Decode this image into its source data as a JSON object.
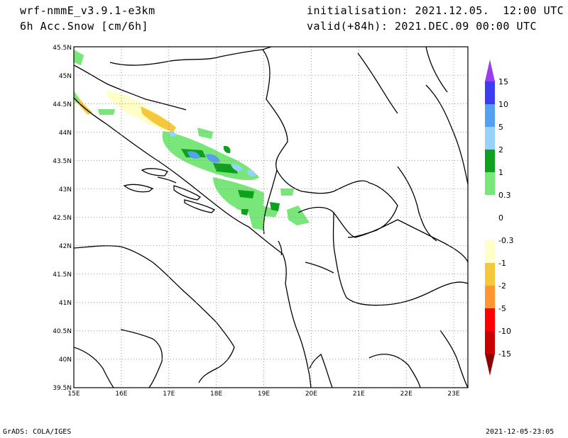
{
  "header": {
    "model": "wrf-nmmE_v3.9.1-e3km",
    "field": "6h Acc.Snow [cm/6h]",
    "init": "initialisation: 2021.12.05.  12:00 UTC",
    "valid": "valid(+84h): 2021.DEC.09 00:00 UTC"
  },
  "footer": {
    "left": "GrADS: COLA/IGES",
    "right": "2021-12-05-23:05"
  },
  "map": {
    "lon_range": [
      15,
      23.3
    ],
    "lat_range": [
      39.5,
      45.5
    ],
    "lon_ticks": [
      "15E",
      "16E",
      "17E",
      "18E",
      "19E",
      "20E",
      "21E",
      "22E",
      "23E"
    ],
    "lat_ticks": [
      "39.5N",
      "40N",
      "40.5N",
      "41N",
      "41.5N",
      "42N",
      "42.5N",
      "43N",
      "43.5N",
      "44N",
      "44.5N",
      "45N",
      "45.5N"
    ],
    "grid": "dotted"
  },
  "colorbar": {
    "labels": [
      "15",
      "10",
      "5",
      "2",
      "1",
      "0.3",
      "0",
      "-0.3",
      "-1",
      "-2",
      "-5",
      "-10",
      "-15"
    ],
    "colors": {
      "top_arrow": "#9a3cf0",
      "c15_10": "#3c3cf0",
      "c10_5": "#55a0f0",
      "c5_2": "#96d2fa",
      "c2_1": "#0ea01e",
      "c1_03": "#78e678",
      "c03_m03": "#ffffff",
      "cm03_m1": "#ffffc8",
      "cm1_m2": "#f5c83c",
      "cm2_m5": "#ff9632",
      "cm5_m10": "#ff0000",
      "cm10_m15": "#c80000",
      "bottom_arrow": "#8c0000"
    }
  }
}
